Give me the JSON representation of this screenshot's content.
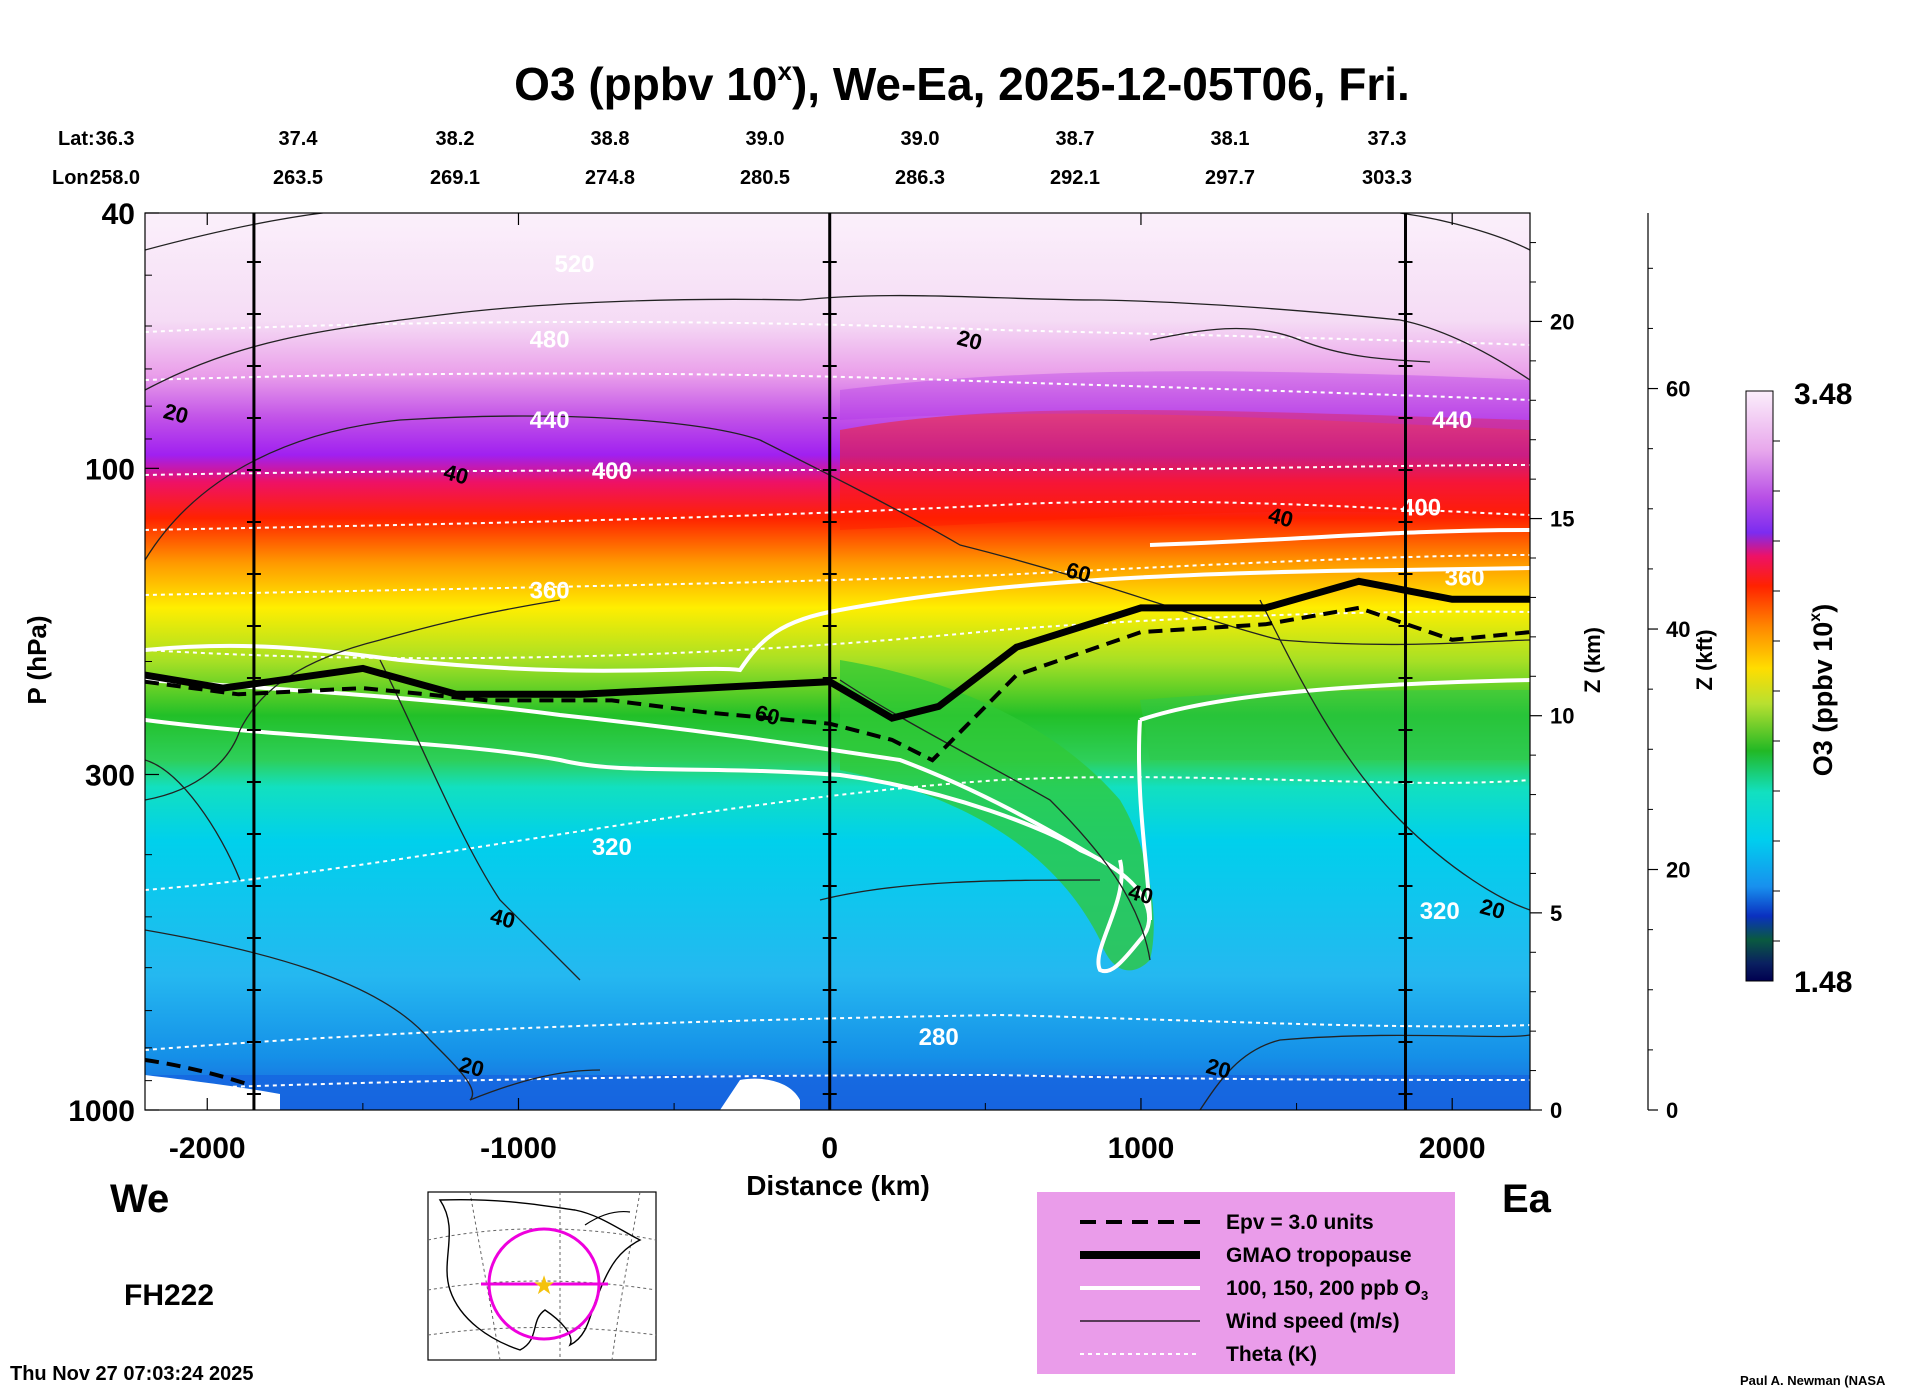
{
  "title": "O3 (ppbv 10",
  "title_sup": "x",
  "title_rest": "), We-Ea, 2025-12-05T06, Fri.",
  "lat_label": "Lat:",
  "lon_label": "Lon:",
  "lats": [
    "36.3",
    "37.4",
    "38.2",
    "38.8",
    "39.0",
    "39.0",
    "38.7",
    "38.1",
    "37.3"
  ],
  "lons": [
    "258.0",
    "263.5",
    "269.1",
    "274.8",
    "280.5",
    "286.3",
    "292.1",
    "297.7",
    "303.3"
  ],
  "we_label": "We",
  "ea_label": "Ea",
  "fh_label": "FH222",
  "timestamp": "Thu Nov 27 07:03:24 2025",
  "credit": "Paul A. Newman (NASA",
  "colorbar": {
    "max_label": "3.48",
    "min_label": "1.48",
    "title": "O3 (ppbv 10",
    "title_sup": "x",
    "title_end": ")"
  },
  "legend": {
    "items": [
      {
        "label": "Epv = 3.0 units"
      },
      {
        "label": "GMAO tropopause"
      },
      {
        "label": "100, 150, 200 ppb O"
      },
      {
        "label": "Wind speed (m/s)"
      },
      {
        "label": "Theta (K)"
      }
    ],
    "o3_sub": "3"
  },
  "chart_data": {
    "type": "heatmap",
    "title": "O3 (ppbv 10^x), We-Ea, 2025-12-05T06, Fri.",
    "xlabel": "Distance (km)",
    "ylabel": "P (hPa)",
    "y2label": "Z (km)",
    "y3label": "Z (kft)",
    "xlim": [
      -2200,
      2250
    ],
    "ylim_hpa": [
      1000,
      40
    ],
    "x_ticks": [
      "-2000",
      "-1000",
      "0",
      "1000",
      "2000"
    ],
    "x_tick_values": [
      -2000,
      -1000,
      0,
      1000,
      2000
    ],
    "p_ticks": [
      "1000",
      "300",
      "100",
      "40"
    ],
    "p_tick_values": [
      1000,
      300,
      100,
      40
    ],
    "z_km_ticks": [
      "0",
      "5",
      "10",
      "15",
      "20"
    ],
    "z_km_values": [
      0,
      5,
      10,
      15,
      20
    ],
    "z_kft_ticks": [
      "0",
      "20",
      "40",
      "60"
    ],
    "z_kft_values": [
      0,
      20,
      40,
      60
    ],
    "colorbar_range": [
      1.48,
      3.48
    ],
    "vertical_markers_km": [
      -1850,
      0,
      1850
    ],
    "tropopause_hpa": {
      "x": [
        -2200,
        -1950,
        -1800,
        -1500,
        -1200,
        -800,
        -400,
        0,
        200,
        350,
        600,
        1000,
        1400,
        1700,
        2000,
        2250
      ],
      "p": [
        210,
        220,
        215,
        205,
        225,
        225,
        220,
        215,
        245,
        235,
        190,
        165,
        165,
        150,
        160,
        160
      ]
    },
    "epv_hpa": {
      "x": [
        -2200,
        -1900,
        -1500,
        -1100,
        -700,
        -400,
        0,
        200,
        330,
        600,
        1000,
        1400,
        1700,
        2000,
        2250
      ],
      "p": [
        215,
        225,
        220,
        230,
        230,
        240,
        250,
        265,
        285,
        210,
        180,
        175,
        165,
        185,
        180
      ]
    },
    "theta_labels": [
      {
        "x": -820,
        "p": 48,
        "text": "520"
      },
      {
        "x": -900,
        "p": 63,
        "text": "480"
      },
      {
        "x": -900,
        "p": 84,
        "text": "440"
      },
      {
        "x": -700,
        "p": 101,
        "text": "400"
      },
      {
        "x": -900,
        "p": 155,
        "text": "360"
      },
      {
        "x": -700,
        "p": 389,
        "text": "320"
      },
      {
        "x": 350,
        "p": 770,
        "text": "280"
      },
      {
        "x": 2000,
        "p": 84,
        "text": "440"
      },
      {
        "x": 1900,
        "p": 115,
        "text": "400"
      },
      {
        "x": 2040,
        "p": 148,
        "text": "360"
      },
      {
        "x": 1960,
        "p": 490,
        "text": "320"
      }
    ],
    "wind_labels": [
      {
        "x": -2100,
        "p": 82,
        "text": "20"
      },
      {
        "x": -1200,
        "p": 102,
        "text": "40"
      },
      {
        "x": 450,
        "p": 63,
        "text": "20"
      },
      {
        "x": 1450,
        "p": 119,
        "text": "40"
      },
      {
        "x": 800,
        "p": 145,
        "text": "60"
      },
      {
        "x": -200,
        "p": 242,
        "text": "60"
      },
      {
        "x": -1050,
        "p": 502,
        "text": "40"
      },
      {
        "x": -1150,
        "p": 855,
        "text": "20"
      },
      {
        "x": 1000,
        "p": 460,
        "text": "40"
      },
      {
        "x": 2130,
        "p": 485,
        "text": "20"
      },
      {
        "x": 1250,
        "p": 860,
        "text": "20"
      }
    ]
  }
}
